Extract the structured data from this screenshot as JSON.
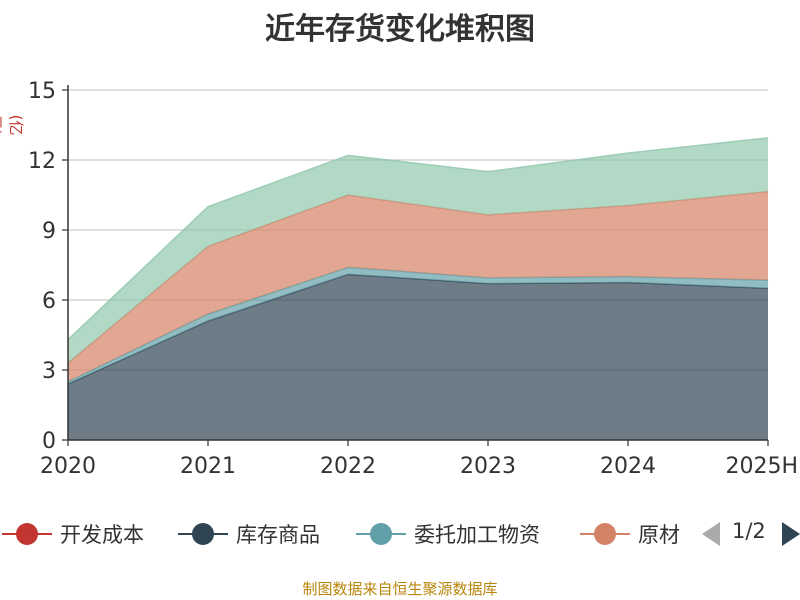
{
  "chart_data": {
    "type": "area",
    "title": "近年存货变化堆积图",
    "unit": "(亿元)",
    "categories": [
      "2020",
      "2021",
      "2022",
      "2023",
      "2024",
      "2025H"
    ],
    "ylim": [
      0,
      15
    ],
    "yticks": [
      0,
      3,
      6,
      9,
      12,
      15
    ],
    "stacked": true,
    "grid": true,
    "legend_position": "bottom",
    "series": [
      {
        "name": "开发成本",
        "color": "#c23531",
        "values": [
          0,
          0,
          0,
          0,
          0,
          0
        ]
      },
      {
        "name": "库存商品",
        "color": "#2f4554",
        "values": [
          2.4,
          5.1,
          7.1,
          6.7,
          6.75,
          6.5
        ]
      },
      {
        "name": "委托加工物资",
        "color": "#61a0a8",
        "values": [
          0.1,
          0.3,
          0.3,
          0.25,
          0.25,
          0.35
        ]
      },
      {
        "name": "原材料",
        "color": "#d48265",
        "values": [
          0.8,
          2.9,
          3.1,
          2.7,
          3.05,
          3.8
        ]
      },
      {
        "name": "",
        "color": "#91c7ae",
        "values": [
          1.0,
          1.7,
          1.7,
          1.85,
          2.25,
          2.3
        ]
      }
    ]
  },
  "legend_visible": [
    "开发成本",
    "库存商品",
    "委托加工物资",
    "原材"
  ],
  "pager": {
    "label": "1/2"
  },
  "source": "制图数据来自恒生聚源数据库"
}
